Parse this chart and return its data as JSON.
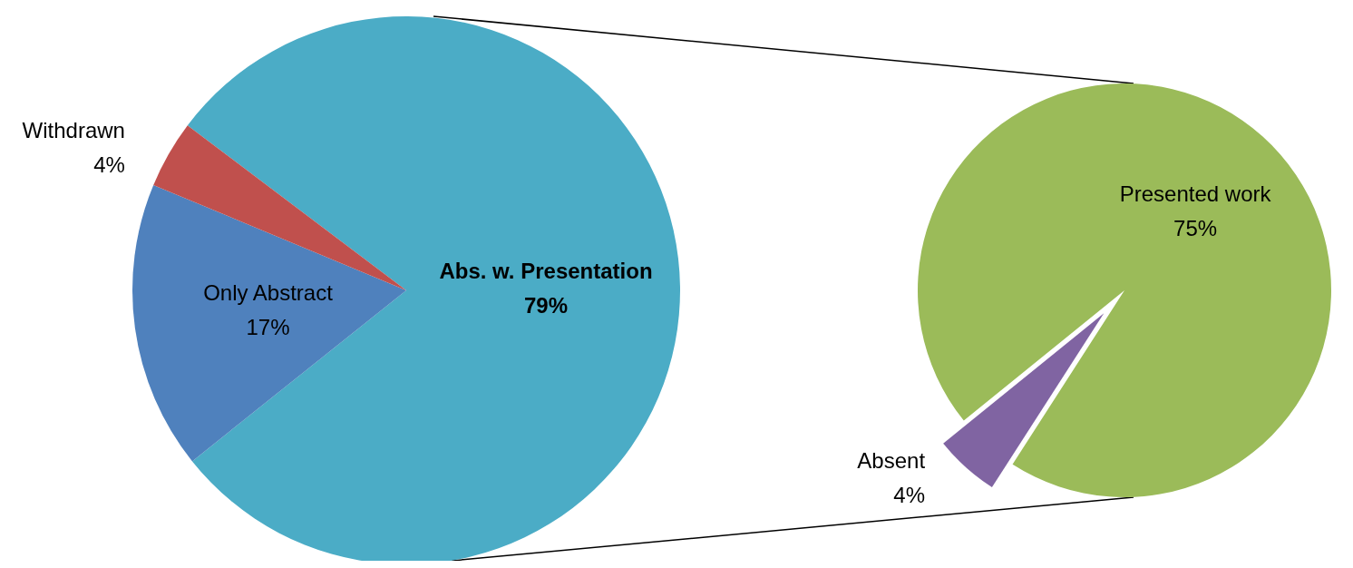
{
  "chart_data": [
    {
      "type": "pie",
      "categories": [
        "Abs. w. Presentation",
        "Only Abstract",
        "Withdrawn"
      ],
      "values": [
        79,
        17,
        4
      ],
      "colors": [
        "#4bacc6",
        "#4f81bd",
        "#c0504d"
      ],
      "value_labels": [
        "79%",
        "17%",
        "4%"
      ]
    },
    {
      "type": "pie",
      "categories": [
        "Presented work",
        "Absent"
      ],
      "values": [
        75,
        4
      ],
      "colors": [
        "#9bbb59",
        "#8064a2"
      ],
      "value_labels": [
        "75%",
        "4%"
      ]
    }
  ]
}
